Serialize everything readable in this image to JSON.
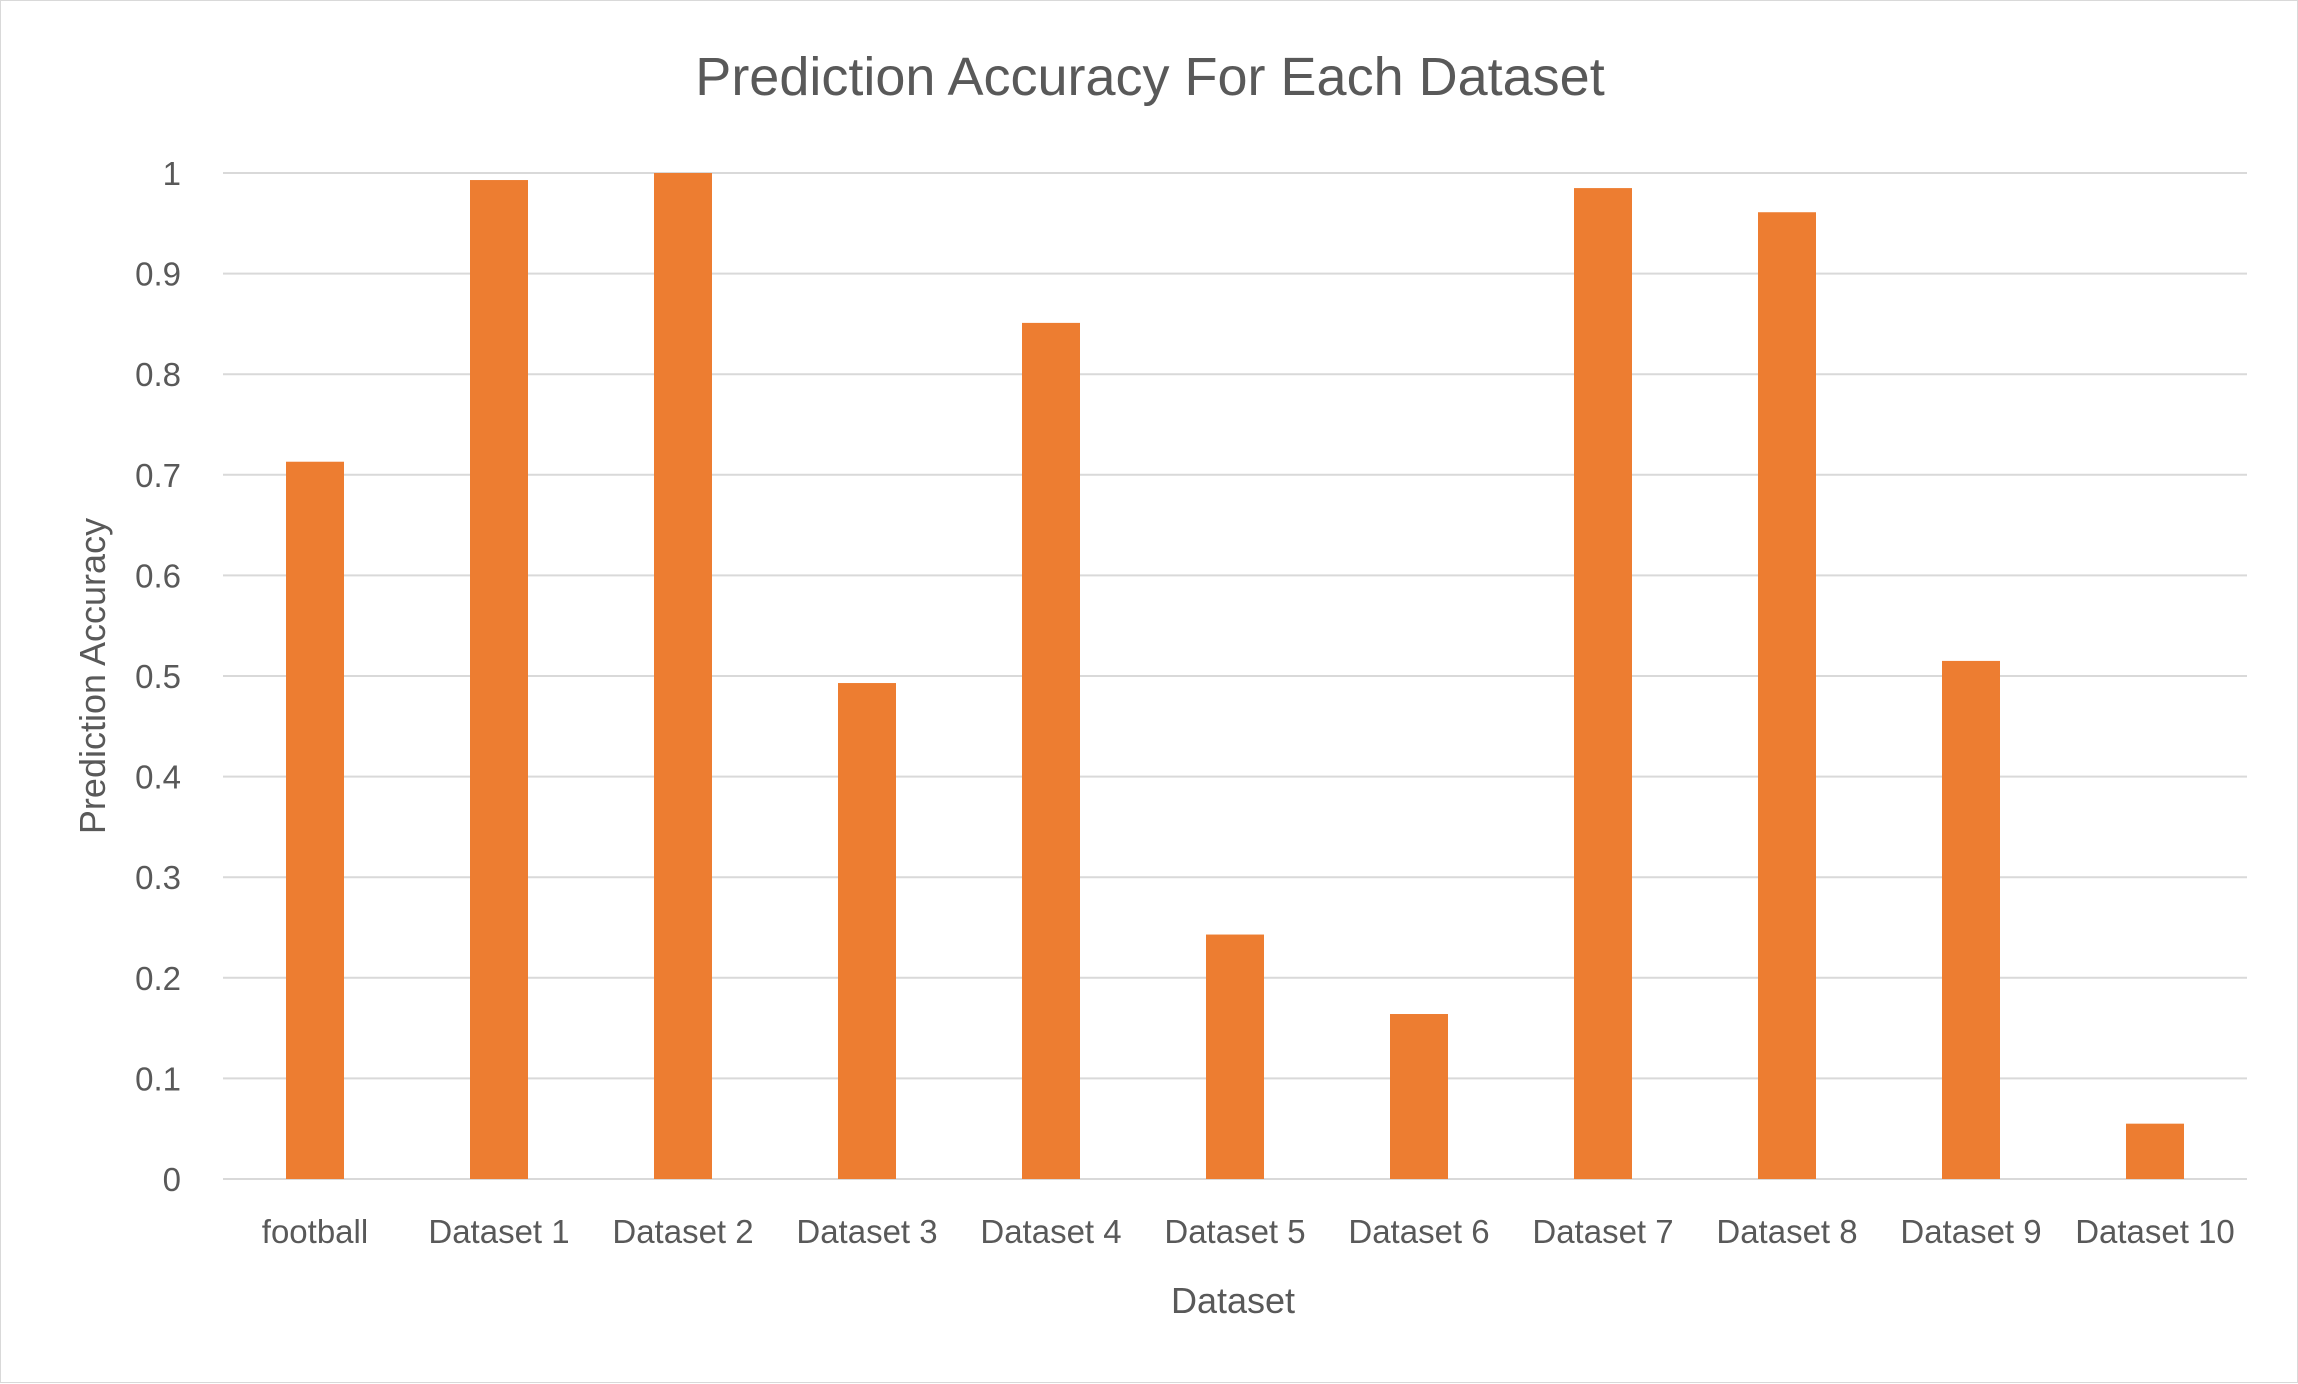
{
  "chart_data": {
    "type": "bar",
    "title": "Prediction Accuracy For Each Dataset",
    "xlabel": "Dataset",
    "ylabel": "Prediction Accuracy",
    "categories": [
      "football",
      "Dataset 1",
      "Dataset 2",
      "Dataset 3",
      "Dataset 4",
      "Dataset 5",
      "Dataset 6",
      "Dataset 7",
      "Dataset 8",
      "Dataset 9",
      "Dataset 10"
    ],
    "series": [
      {
        "values": [
          0.713,
          0.993,
          1.0,
          0.493,
          0.851,
          0.243,
          0.164,
          0.985,
          0.961,
          0.515,
          0.055
        ],
        "color": "#ed7d31"
      }
    ],
    "ylim": [
      0,
      1
    ],
    "yticks": [
      "0",
      "0.1",
      "0.2",
      "0.3",
      "0.4",
      "0.5",
      "0.6",
      "0.7",
      "0.8",
      "0.9",
      "1"
    ],
    "grid": true,
    "legend": "none"
  }
}
